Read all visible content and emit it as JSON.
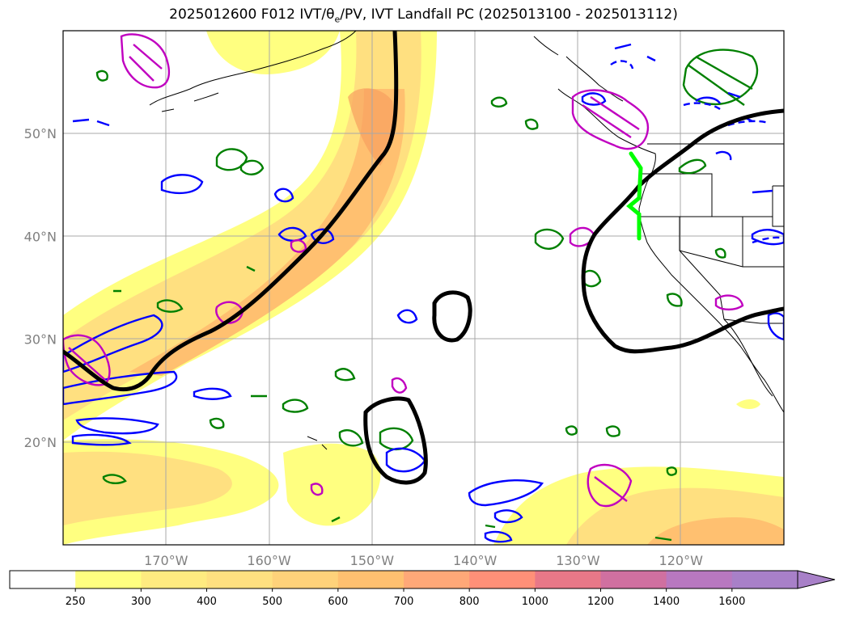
{
  "title": {
    "prefix": "2025012600 F012 IVT/θ",
    "sub": "e",
    "suffix": "/PV, IVT Landfall PC (2025013100 - 2025013112)"
  },
  "map": {
    "lat_labels": [
      "50°N",
      "40°N",
      "30°N",
      "20°N"
    ],
    "lon_labels": [
      "170°W",
      "160°W",
      "150°W",
      "140°W",
      "130°W",
      "120°W"
    ],
    "lat_values": [
      50,
      40,
      30,
      20
    ],
    "lon_values": [
      -170,
      -160,
      -150,
      -140,
      -130,
      -120
    ],
    "extent": {
      "lon_min": -180,
      "lon_max": -110,
      "lat_min": 10,
      "lat_max": 60
    },
    "grid": true,
    "land_fill": "#ffffff",
    "colors": {
      "ivt_lowest": "#ffff80",
      "ivt_low": "#ffe080",
      "ivt_mid": "#ffc070",
      "ivt_high": "#f8a060",
      "theta_e": "#000000",
      "pv_green": "#008000",
      "pv_blue": "#0000ff",
      "pv_magenta": "#c000c0",
      "landfall": "#00ff00",
      "coast": "#000000"
    }
  },
  "colorbar": {
    "ticks": [
      "250",
      "300",
      "400",
      "500",
      "600",
      "700",
      "800",
      "1000",
      "1200",
      "1400",
      "1600"
    ],
    "colors": [
      "#ffffff",
      "#ffff80",
      "#ffeb80",
      "#ffe080",
      "#ffd27a",
      "#ffc070",
      "#ffa878",
      "#ff9078",
      "#e87888",
      "#d070a0",
      "#b878c0",
      "#a880c8"
    ],
    "extend": "max"
  }
}
